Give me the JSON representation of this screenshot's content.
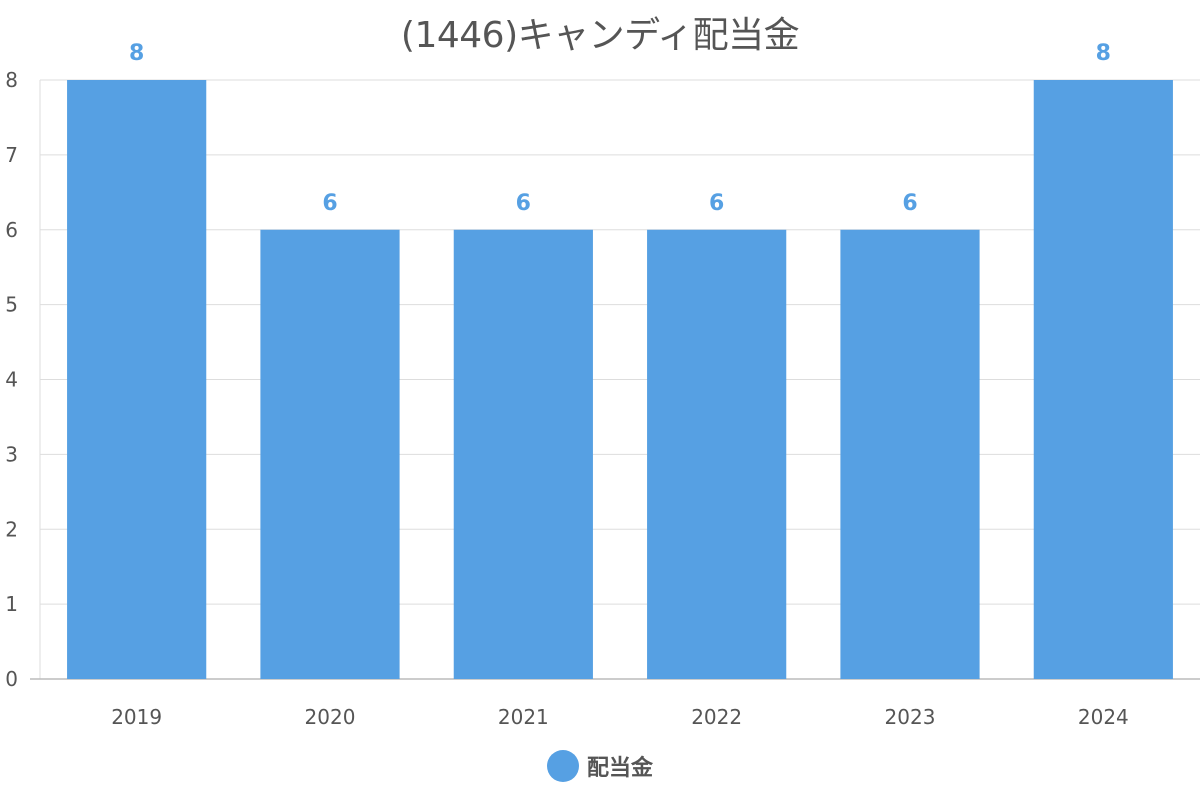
{
  "colors": {
    "bar": "#56a0e3",
    "data_label": "#56a0e3",
    "grid": "#dddddd",
    "axis": "#bbbbbb",
    "text": "#555555"
  },
  "chart_data": {
    "type": "bar",
    "title": "(1446)キャンディ配当金",
    "categories": [
      "2019",
      "2020",
      "2021",
      "2022",
      "2023",
      "2024"
    ],
    "series": [
      {
        "name": "配当金",
        "values": [
          8,
          6,
          6,
          6,
          6,
          8
        ]
      }
    ],
    "xlabel": "",
    "ylabel": "",
    "ylim": [
      0,
      8
    ],
    "yticks": [
      0,
      1,
      2,
      3,
      4,
      5,
      6,
      7,
      8
    ],
    "grid": true,
    "data_labels": true,
    "legend": "bottom-center"
  }
}
